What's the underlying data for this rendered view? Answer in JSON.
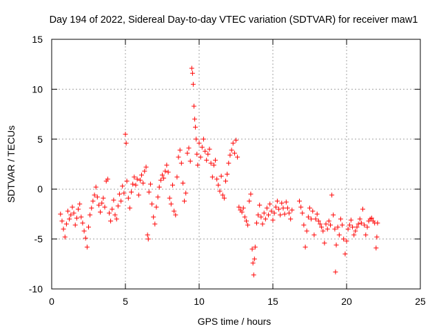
{
  "chart_data": {
    "type": "scatter",
    "title": "Day 194 of 2022, Sidereal Day-to-day VTEC variation (SDTVAR) for receiver maw1",
    "xlabel": "GPS time / hours",
    "ylabel": "SDTVAR / TECUs",
    "xlim": [
      0,
      25
    ],
    "ylim": [
      -10,
      15
    ],
    "xticks": [
      0,
      5,
      10,
      15,
      20,
      25
    ],
    "yticks": [
      -10,
      -5,
      0,
      5,
      10,
      15
    ],
    "xtick_labels": [
      "0",
      "5",
      "10",
      "15",
      "20",
      "25"
    ],
    "ytick_labels": [
      "-10",
      "-5",
      "0",
      "5",
      "10",
      "15"
    ],
    "grid": true,
    "marker": "+",
    "series": [
      {
        "name": "SDTVAR",
        "color": "#ff0000",
        "points": [
          [
            0.6,
            -2.5
          ],
          [
            0.7,
            -3.2
          ],
          [
            0.8,
            -4.0
          ],
          [
            0.9,
            -4.8
          ],
          [
            1.0,
            -3.5
          ],
          [
            1.1,
            -2.2
          ],
          [
            1.2,
            -3.0
          ],
          [
            1.3,
            -2.6
          ],
          [
            1.4,
            -1.8
          ],
          [
            1.5,
            -2.4
          ],
          [
            1.6,
            -3.6
          ],
          [
            1.7,
            -2.9
          ],
          [
            1.8,
            -2.0
          ],
          [
            1.9,
            -1.5
          ],
          [
            2.0,
            -2.8
          ],
          [
            2.1,
            -3.4
          ],
          [
            2.2,
            -4.2
          ],
          [
            2.3,
            -4.9
          ],
          [
            2.4,
            -5.8
          ],
          [
            2.5,
            -3.8
          ],
          [
            2.6,
            -2.6
          ],
          [
            2.7,
            -1.9
          ],
          [
            2.8,
            -1.2
          ],
          [
            2.9,
            -0.6
          ],
          [
            3.0,
            0.2
          ],
          [
            3.1,
            -0.8
          ],
          [
            3.2,
            -1.6
          ],
          [
            3.3,
            -2.3
          ],
          [
            3.4,
            -1.4
          ],
          [
            3.5,
            -0.9
          ],
          [
            3.6,
            -1.8
          ],
          [
            3.7,
            0.8
          ],
          [
            3.8,
            1.0
          ],
          [
            3.9,
            -2.4
          ],
          [
            4.0,
            -3.2
          ],
          [
            4.1,
            -2.0
          ],
          [
            4.2,
            -1.1
          ],
          [
            4.3,
            -2.6
          ],
          [
            4.4,
            -3.0
          ],
          [
            4.5,
            -1.7
          ],
          [
            4.6,
            -0.5
          ],
          [
            4.7,
            -1.2
          ],
          [
            4.8,
            0.3
          ],
          [
            4.9,
            -0.4
          ],
          [
            5.0,
            5.5
          ],
          [
            5.05,
            4.6
          ],
          [
            5.1,
            0.8
          ],
          [
            5.2,
            -0.9
          ],
          [
            5.3,
            -1.9
          ],
          [
            5.4,
            -0.3
          ],
          [
            5.5,
            0.5
          ],
          [
            5.6,
            1.2
          ],
          [
            5.7,
            0.4
          ],
          [
            5.8,
            1.0
          ],
          [
            5.9,
            -0.6
          ],
          [
            6.0,
            0.9
          ],
          [
            6.1,
            1.4
          ],
          [
            6.2,
            0.6
          ],
          [
            6.3,
            1.8
          ],
          [
            6.4,
            2.2
          ],
          [
            6.5,
            -4.6
          ],
          [
            6.55,
            -5.0
          ],
          [
            6.6,
            -0.3
          ],
          [
            6.7,
            0.5
          ],
          [
            6.8,
            -1.5
          ],
          [
            6.9,
            -2.8
          ],
          [
            7.0,
            -3.5
          ],
          [
            7.1,
            -1.8
          ],
          [
            7.2,
            -0.8
          ],
          [
            7.3,
            0.2
          ],
          [
            7.4,
            0.9
          ],
          [
            7.5,
            1.4
          ],
          [
            7.6,
            1.1
          ],
          [
            7.7,
            1.8
          ],
          [
            7.8,
            2.4
          ],
          [
            7.9,
            1.7
          ],
          [
            8.0,
            -0.9
          ],
          [
            8.1,
            -1.5
          ],
          [
            8.2,
            0.4
          ],
          [
            8.3,
            -2.2
          ],
          [
            8.4,
            -2.6
          ],
          [
            8.5,
            1.2
          ],
          [
            8.6,
            3.2
          ],
          [
            8.7,
            3.9
          ],
          [
            8.8,
            2.6
          ],
          [
            8.9,
            0.6
          ],
          [
            9.0,
            -1.2
          ],
          [
            9.1,
            -0.4
          ],
          [
            9.2,
            3.6
          ],
          [
            9.3,
            4.1
          ],
          [
            9.4,
            2.8
          ],
          [
            9.5,
            12.1
          ],
          [
            9.55,
            11.6
          ],
          [
            9.6,
            10.5
          ],
          [
            9.65,
            8.3
          ],
          [
            9.7,
            7.0
          ],
          [
            9.75,
            6.2
          ],
          [
            9.8,
            5.0
          ],
          [
            9.85,
            3.5
          ],
          [
            9.9,
            2.4
          ],
          [
            10.0,
            4.6
          ],
          [
            10.1,
            3.2
          ],
          [
            10.2,
            4.2
          ],
          [
            10.3,
            5.0
          ],
          [
            10.4,
            3.8
          ],
          [
            10.5,
            2.9
          ],
          [
            10.6,
            3.5
          ],
          [
            10.7,
            4.0
          ],
          [
            10.8,
            2.6
          ],
          [
            10.9,
            1.2
          ],
          [
            11.0,
            2.4
          ],
          [
            11.1,
            2.9
          ],
          [
            11.2,
            1.0
          ],
          [
            11.3,
            0.4
          ],
          [
            11.4,
            -0.2
          ],
          [
            11.5,
            1.3
          ],
          [
            11.6,
            -0.6
          ],
          [
            11.7,
            -0.9
          ],
          [
            11.8,
            0.8
          ],
          [
            11.9,
            1.5
          ],
          [
            12.0,
            2.6
          ],
          [
            12.1,
            3.4
          ],
          [
            12.2,
            3.9
          ],
          [
            12.3,
            4.6
          ],
          [
            12.4,
            3.6
          ],
          [
            12.5,
            4.9
          ],
          [
            12.6,
            3.2
          ],
          [
            12.7,
            -1.8
          ],
          [
            12.8,
            -2.1
          ],
          [
            12.9,
            -2.3
          ],
          [
            13.0,
            -1.9
          ],
          [
            13.1,
            -2.8
          ],
          [
            13.2,
            -3.2
          ],
          [
            13.3,
            -3.6
          ],
          [
            13.4,
            -1.2
          ],
          [
            13.5,
            -0.5
          ],
          [
            13.6,
            -6.0
          ],
          [
            13.65,
            -7.4
          ],
          [
            13.7,
            -8.6
          ],
          [
            13.75,
            -7.0
          ],
          [
            13.8,
            -5.8
          ],
          [
            13.9,
            -3.4
          ],
          [
            14.0,
            -2.6
          ],
          [
            14.1,
            -1.6
          ],
          [
            14.2,
            -2.8
          ],
          [
            14.3,
            -3.5
          ],
          [
            14.4,
            -2.4
          ],
          [
            14.5,
            -3.0
          ],
          [
            14.6,
            -1.9
          ],
          [
            14.7,
            -2.6
          ],
          [
            14.8,
            -1.5
          ],
          [
            14.9,
            -2.2
          ],
          [
            15.0,
            -3.1
          ],
          [
            15.1,
            -2.4
          ],
          [
            15.2,
            -1.8
          ],
          [
            15.3,
            -1.2
          ],
          [
            15.4,
            -2.0
          ],
          [
            15.5,
            -2.6
          ],
          [
            15.6,
            -1.4
          ],
          [
            15.7,
            -1.9
          ],
          [
            15.8,
            -2.5
          ],
          [
            15.9,
            -1.3
          ],
          [
            16.0,
            -1.9
          ],
          [
            16.1,
            -2.4
          ],
          [
            16.2,
            -3.0
          ],
          [
            16.3,
            -2.1
          ],
          [
            16.8,
            -1.2
          ],
          [
            16.9,
            -1.8
          ],
          [
            17.0,
            -2.4
          ],
          [
            17.1,
            -3.6
          ],
          [
            17.2,
            -5.8
          ],
          [
            17.3,
            -4.2
          ],
          [
            17.4,
            -2.8
          ],
          [
            17.5,
            -1.9
          ],
          [
            17.6,
            -3.0
          ],
          [
            17.7,
            -2.2
          ],
          [
            17.8,
            -4.6
          ],
          [
            17.9,
            -3.0
          ],
          [
            18.0,
            -2.5
          ],
          [
            18.1,
            -3.2
          ],
          [
            18.2,
            -3.5
          ],
          [
            18.3,
            -3.8
          ],
          [
            18.4,
            -4.2
          ],
          [
            18.5,
            -5.4
          ],
          [
            18.6,
            -3.5
          ],
          [
            18.7,
            -4.0
          ],
          [
            18.8,
            -3.2
          ],
          [
            18.9,
            -3.6
          ],
          [
            19.0,
            -0.6
          ],
          [
            19.1,
            -2.6
          ],
          [
            19.2,
            -4.0
          ],
          [
            19.25,
            -8.3
          ],
          [
            19.3,
            -5.6
          ],
          [
            19.4,
            -3.8
          ],
          [
            19.5,
            -4.6
          ],
          [
            19.6,
            -3.0
          ],
          [
            19.7,
            -3.6
          ],
          [
            19.8,
            -5.0
          ],
          [
            19.9,
            -6.5
          ],
          [
            20.0,
            -5.2
          ],
          [
            20.1,
            -4.0
          ],
          [
            20.2,
            -3.6
          ],
          [
            20.3,
            -3.1
          ],
          [
            20.4,
            -3.8
          ],
          [
            20.5,
            -4.6
          ],
          [
            20.6,
            -4.2
          ],
          [
            20.7,
            -3.8
          ],
          [
            20.8,
            -3.5
          ],
          [
            20.9,
            -3.0
          ],
          [
            21.0,
            -3.4
          ],
          [
            21.1,
            -2.0
          ],
          [
            21.2,
            -3.6
          ],
          [
            21.3,
            -4.6
          ],
          [
            21.4,
            -3.8
          ],
          [
            21.5,
            -3.2
          ],
          [
            21.6,
            -3.0
          ],
          [
            21.7,
            -2.9
          ],
          [
            21.8,
            -3.2
          ],
          [
            21.9,
            -3.4
          ],
          [
            22.0,
            -5.9
          ],
          [
            22.05,
            -4.8
          ],
          [
            22.1,
            -3.4
          ]
        ]
      }
    ]
  }
}
